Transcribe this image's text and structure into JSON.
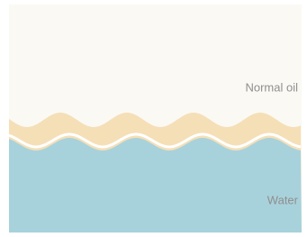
{
  "labels": {
    "oil": "Normal oil",
    "water": "Water"
  }
}
